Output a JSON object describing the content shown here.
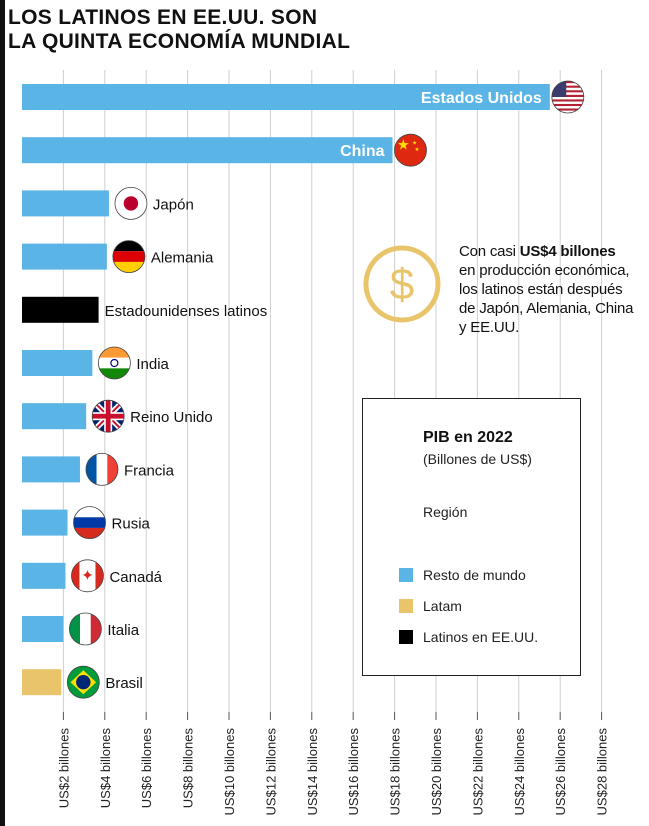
{
  "header": {
    "title_line1": "LOS LATINOS EN EE.UU. SON",
    "title_line2": "LA QUINTA ECONOMÍA MUNDIAL"
  },
  "note": {
    "prefix": "Con casi ",
    "highlight": "US$4 billones",
    "rest": " en producción económica, los latinos están después de Japón, Alemania, China y EE.UU."
  },
  "legend": {
    "title": "PIB en 2022",
    "subtitle": "(Billones de US$)",
    "region_label": "Región",
    "items": [
      {
        "label": "Resto de mundo",
        "color": "#5ab4e5"
      },
      {
        "label": "Latam",
        "color": "#e9c46a"
      },
      {
        "label": "Latinos en EE.UU.",
        "color": "#000000"
      }
    ]
  },
  "colors": {
    "rest_of_world": "#5ab4e5",
    "latam": "#e9c46a",
    "us_latinos": "#000000",
    "coin": "#e9c46a",
    "gridline": "#cfcfcf"
  },
  "chart_data": {
    "type": "bar",
    "orientation": "horizontal",
    "title": "PIB en 2022",
    "unit": "Billones de US$",
    "categories": [
      "Estados Unidos",
      "China",
      "Japón",
      "Alemania",
      "Estadounidenses latinos",
      "India",
      "Reino Unido",
      "Francia",
      "Rusia",
      "Canadá",
      "Italia",
      "Brasil"
    ],
    "values": [
      25.5,
      17.9,
      4.2,
      4.1,
      3.7,
      3.4,
      3.1,
      2.8,
      2.2,
      2.1,
      2.0,
      1.9
    ],
    "groups": [
      "Resto de mundo",
      "Resto de mundo",
      "Resto de mundo",
      "Resto de mundo",
      "Latinos en EE.UU.",
      "Resto de mundo",
      "Resto de mundo",
      "Resto de mundo",
      "Resto de mundo",
      "Resto de mundo",
      "Resto de mundo",
      "Latam"
    ],
    "flags": [
      "usa-flag-icon",
      "china-flag-icon",
      "japan-flag-icon",
      "germany-flag-icon",
      "",
      "india-flag-icon",
      "uk-flag-icon",
      "france-flag-icon",
      "russia-flag-icon",
      "canada-flag-icon",
      "italy-flag-icon",
      "brazil-flag-icon"
    ],
    "label_inside_bar": [
      true,
      true,
      false,
      false,
      false,
      false,
      false,
      false,
      false,
      false,
      false,
      false
    ],
    "xticks": [
      2,
      4,
      6,
      8,
      10,
      12,
      14,
      16,
      18,
      20,
      22,
      24,
      26,
      28
    ],
    "xtick_labels": [
      "US$2 billones",
      "US$4 billones",
      "US$6 billones",
      "US$8 billones",
      "US$10 billones",
      "US$12 billones",
      "US$14 billones",
      "US$16 billones",
      "US$18 billones",
      "US$20 billones",
      "US$22 billones",
      "US$24 billones",
      "US$26 billones",
      "US$28 billones"
    ],
    "xlim": [
      0,
      28.6
    ],
    "grid": true,
    "legend_position": "bottom-right"
  }
}
